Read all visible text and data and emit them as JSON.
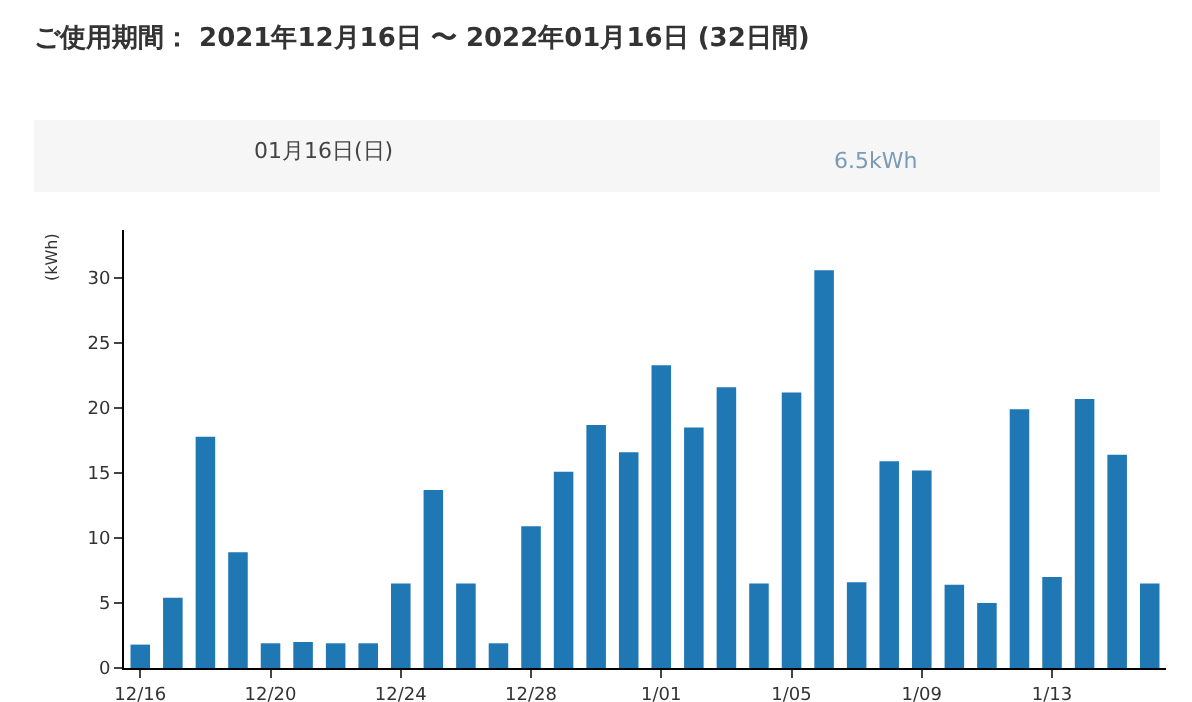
{
  "chart_data": {
    "type": "bar",
    "title": "ご使用期間： 2021年12月16日 〜 2022年01月16日 (32日間)",
    "annotations": [
      "01月16日(日)",
      "6.5kWh"
    ],
    "ylabel": "(kWh)",
    "categories": [
      "12/16",
      null,
      null,
      null,
      "12/20",
      null,
      null,
      null,
      "12/24",
      null,
      null,
      null,
      "12/28",
      null,
      null,
      null,
      "1/01",
      null,
      null,
      null,
      "1/05",
      null,
      null,
      null,
      "1/09",
      null,
      null,
      null,
      "1/13",
      null,
      null,
      null
    ],
    "values": [
      1.8,
      5.4,
      17.8,
      8.9,
      1.9,
      2.0,
      1.9,
      1.9,
      6.5,
      13.7,
      6.5,
      1.9,
      10.9,
      15.1,
      18.7,
      16.6,
      23.3,
      18.5,
      21.6,
      6.5,
      21.2,
      30.6,
      6.6,
      15.9,
      15.2,
      6.4,
      5.0,
      19.9,
      7.0,
      20.7,
      16.4,
      6.5
    ],
    "color": "#1f77b4",
    "ylim": [
      0,
      33.7
    ],
    "yticks": [
      0,
      5,
      10,
      15,
      20,
      25,
      30
    ],
    "grid": false
  }
}
